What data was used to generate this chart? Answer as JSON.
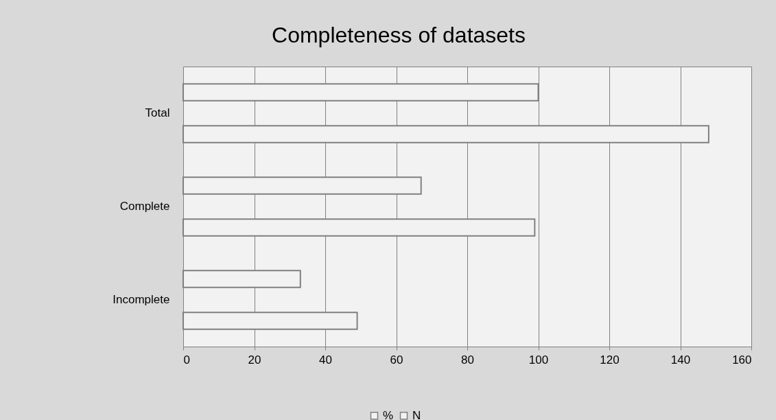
{
  "chart_data": {
    "type": "bar",
    "orientation": "horizontal",
    "title": "Completeness of datasets",
    "categories": [
      "Total",
      "Complete",
      "Incomplete"
    ],
    "series": [
      {
        "name": "%",
        "color": "#f2f2f2",
        "values": [
          100,
          67,
          33
        ]
      },
      {
        "name": "N",
        "color": "#f2f2f2",
        "values": [
          148,
          99,
          49
        ]
      }
    ],
    "xlim": [
      0,
      160
    ],
    "xticks": [
      0,
      20,
      40,
      60,
      80,
      100,
      120,
      140,
      160
    ],
    "grid": "x",
    "legend": "bottom"
  }
}
